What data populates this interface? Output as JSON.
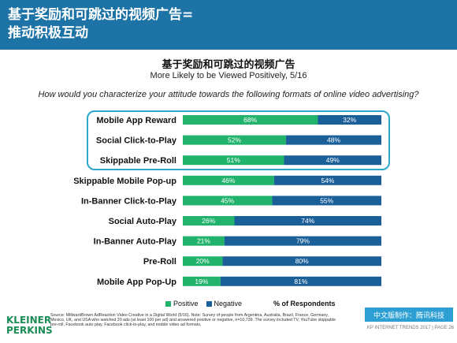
{
  "header": {
    "title_line1": "基于奖励和可跳过的视频广告=",
    "title_line2": "推动积极互动"
  },
  "question": "How would you characterize your attitude towards the following formats of online video advertising?",
  "chart_data": {
    "type": "bar",
    "orientation": "horizontal",
    "stacked": true,
    "title": "基于奖励和可跳过的视频广告",
    "subtitle": "More Likely to be Viewed Positively, 5/16",
    "categories": [
      "Mobile App Reward",
      "Social Click-to-Play",
      "Skippable Pre-Roll",
      "Skippable Mobile Pop-up",
      "In-Banner Click-to-Play",
      "Social Auto-Play",
      "In-Banner Auto-Play",
      "Pre-Roll",
      "Mobile App Pop-Up"
    ],
    "series": [
      {
        "name": "Positive",
        "color": "#21b36b",
        "values": [
          68,
          52,
          51,
          46,
          45,
          26,
          21,
          20,
          19
        ]
      },
      {
        "name": "Negative",
        "color": "#1b5f99",
        "values": [
          32,
          48,
          49,
          54,
          55,
          74,
          79,
          80,
          81
        ]
      }
    ],
    "xlim": [
      0,
      100
    ],
    "units_label": "% of Respondents",
    "highlighted_categories": [
      "Mobile App Reward",
      "Social Click-to-Play",
      "Skippable Pre-Roll"
    ]
  },
  "branding": {
    "logo_line1": "KLEINER",
    "logo_line2": "PERKINS",
    "badge": "中文版制作：腾讯科技",
    "footer": "KP INTERNET TRENDS 2017 | PAGE 26"
  },
  "source_text": "Source: MillwardBrown AdReaction Video Creative in a Digital World (5/16). Note: Survey of people from Argentina, Australia, Brazil, France, Germany, Mexico, UK, and USA who watched 20 ads (at least 100 per ad) and answered positive or negative, n=10,739. The survey included TV, YouTube skippable pre-roll, Facebook auto play, Facebook click-to-play, and mobile video ad formats."
}
